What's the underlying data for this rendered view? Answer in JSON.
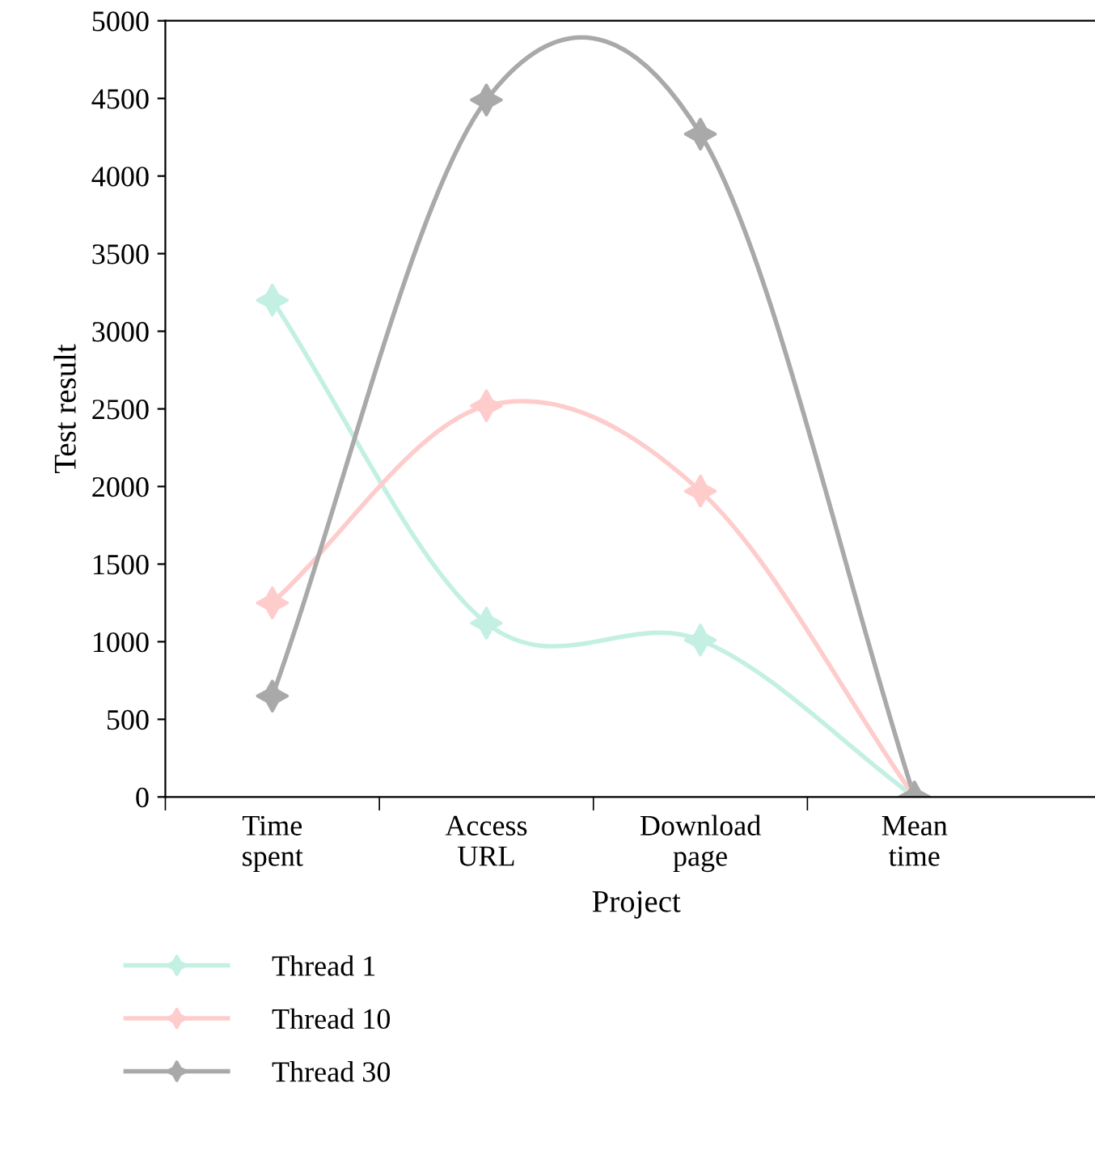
{
  "chart_data": {
    "type": "line",
    "xlabel": "Project",
    "ylabel": "Test result",
    "categories": [
      "Time\nspent",
      "Access\nURL",
      "Download\npage",
      "Mean\ntime"
    ],
    "series": [
      {
        "name": "Thread 1",
        "color": "#c4f0e4",
        "values": [
          3200,
          1120,
          1010,
          0
        ]
      },
      {
        "name": "Thread 10",
        "color": "#ffcccc",
        "values": [
          1250,
          2520,
          1970,
          0
        ]
      },
      {
        "name": "Thread 30",
        "color": "#a9a9a9",
        "values": [
          650,
          4490,
          4270,
          0
        ]
      }
    ],
    "ylim": [
      0,
      5000
    ],
    "yticks": [
      0,
      500,
      1000,
      1500,
      2000,
      2500,
      3000,
      3500,
      4000,
      4500,
      5000
    ],
    "grid": false,
    "legend": "bottom",
    "marker": "star",
    "line_style": "solid"
  }
}
